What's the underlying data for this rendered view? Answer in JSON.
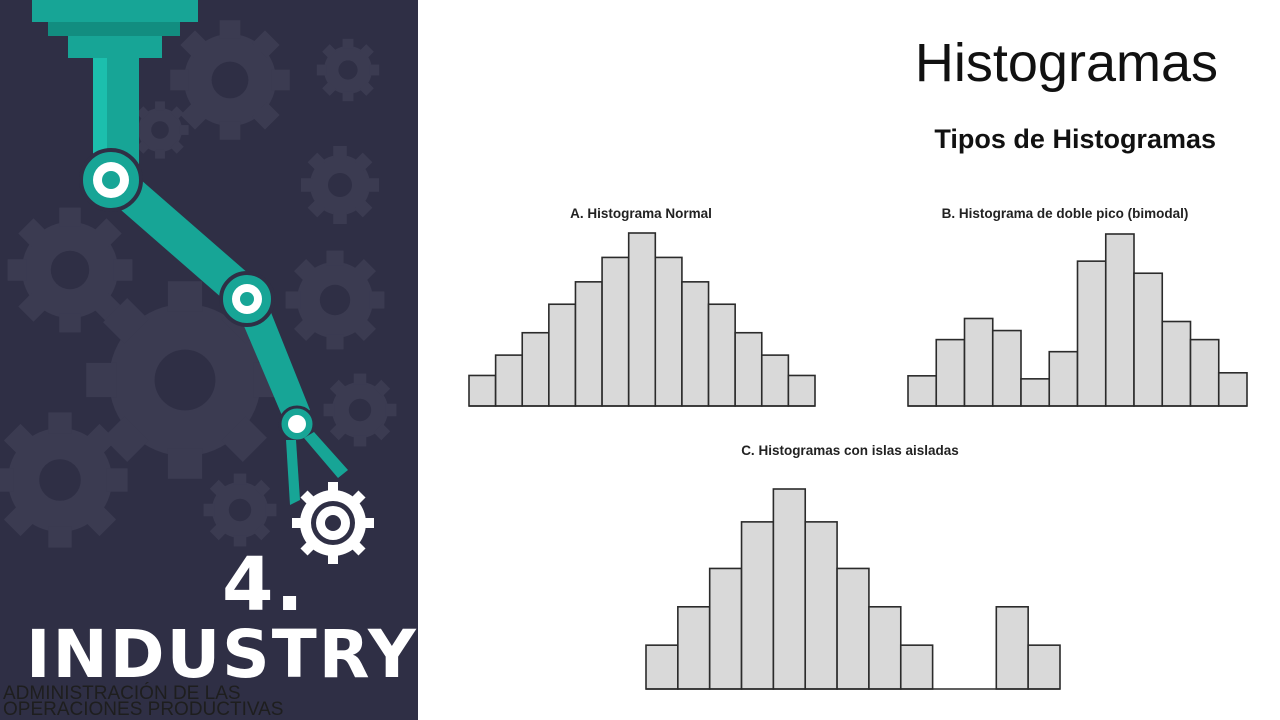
{
  "sidebar": {
    "number": "4.",
    "word": "INDUSTRY",
    "footer_line1": "ADMINISTRACIÓN DE LAS",
    "footer_line2": "OPERACIONES PRODUCTIVAS"
  },
  "slide": {
    "title": "Histogramas",
    "subtitle": "Tipos de Histogramas"
  },
  "colors": {
    "panel": "#2f2f45",
    "gear_dark": "#3c3c52",
    "robot_teal": "#17a596",
    "bar_fill": "#d9d9d9"
  },
  "chart_data": [
    {
      "type": "bar",
      "title": "A. Histograma Normal",
      "values": [
        1.5,
        2.5,
        3.6,
        5.0,
        6.1,
        7.3,
        8.5,
        7.3,
        6.1,
        5.0,
        3.6,
        2.5,
        1.5
      ],
      "ylim": [
        0,
        8.5
      ]
    },
    {
      "type": "bar",
      "title": "B. Histograma de doble pico (bimodal)",
      "values": [
        1.0,
        2.2,
        2.9,
        2.5,
        0.9,
        1.8,
        4.8,
        5.7,
        4.4,
        2.8,
        2.2,
        1.1
      ],
      "ylim": [
        0,
        5.7
      ]
    },
    {
      "type": "bar",
      "title": "C. Histogramas con islas aisladas",
      "values": [
        1.6,
        3.0,
        4.4,
        6.1,
        7.3,
        6.1,
        4.4,
        3.0,
        1.6,
        0,
        0,
        3.0,
        1.6
      ],
      "ylim": [
        0,
        7.3
      ]
    }
  ]
}
